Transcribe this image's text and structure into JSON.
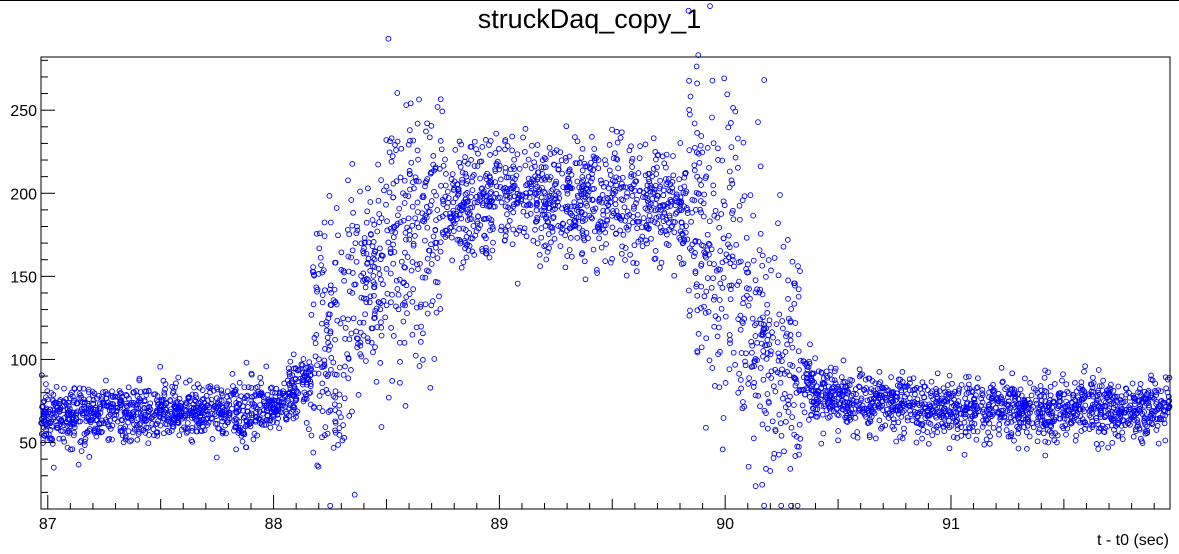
{
  "chart_data": {
    "type": "scatter",
    "title": "struckDaq_copy_1",
    "xlabel": "t - t0 (sec)",
    "ylabel": "",
    "xlim": [
      86.97,
      91.97
    ],
    "ylim": [
      10,
      282
    ],
    "x_ticks": [
      "87",
      "88",
      "89",
      "90",
      "91"
    ],
    "y_ticks": [
      "50",
      "100",
      "150",
      "200",
      "250"
    ],
    "marker": "open-circle",
    "marker_color": "#0000ff",
    "grid": false,
    "legend": "none",
    "profile": {
      "x": [
        86.97,
        87.5,
        87.95,
        88.1,
        88.3,
        88.5,
        88.8,
        89.0,
        89.5,
        89.8,
        90.0,
        90.2,
        90.4,
        90.6,
        91.0,
        91.5,
        91.97
      ],
      "y": [
        66,
        68,
        70,
        80,
        110,
        160,
        190,
        197,
        195,
        190,
        160,
        110,
        80,
        74,
        70,
        70,
        70
      ]
    }
  }
}
